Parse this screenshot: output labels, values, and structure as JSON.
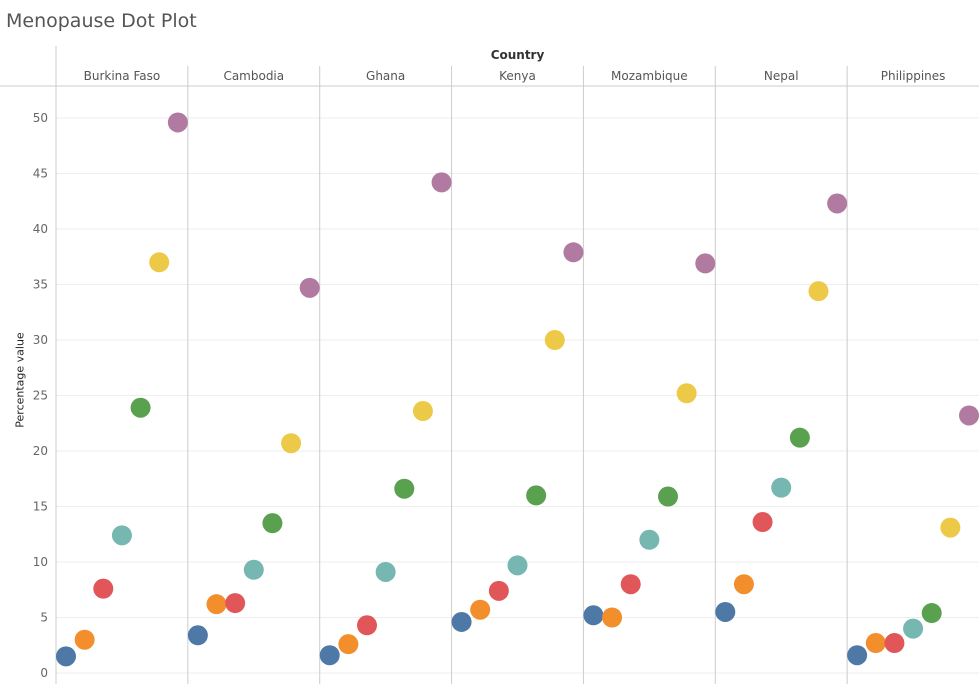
{
  "title": "Menopause Dot Plot",
  "column_header": "Country",
  "chart_data": {
    "type": "scatter",
    "title": "Menopause Dot Plot",
    "xlabel": "Country",
    "ylabel": "Percentage value",
    "ylim": [
      0,
      53
    ],
    "yticks": [
      0,
      5,
      10,
      15,
      20,
      25,
      30,
      35,
      40,
      45,
      50
    ],
    "categories": [
      "Burkina Faso",
      "Cambodia",
      "Ghana",
      "Kenya",
      "Mozambique",
      "Nepal",
      "Philippines"
    ],
    "series_colors": [
      "#4e79a7",
      "#f28e2b",
      "#e15759",
      "#76b7b2",
      "#59a14f",
      "#edc948",
      "#b07aa1"
    ],
    "values": [
      [
        1.5,
        3.0,
        7.6,
        12.4,
        23.9,
        37.0,
        49.6
      ],
      [
        3.4,
        6.2,
        6.3,
        9.3,
        13.5,
        20.7,
        34.7
      ],
      [
        1.6,
        2.6,
        4.3,
        9.1,
        16.6,
        23.6,
        44.2
      ],
      [
        4.6,
        5.7,
        7.4,
        9.7,
        16.0,
        30.0,
        37.9
      ],
      [
        5.2,
        5.0,
        8.0,
        12.0,
        15.9,
        25.2,
        36.9
      ],
      [
        5.5,
        8.0,
        13.6,
        16.7,
        21.2,
        34.4,
        42.3
      ],
      [
        1.6,
        2.7,
        2.7,
        4.0,
        5.4,
        13.1,
        23.2
      ]
    ],
    "grid": true
  }
}
